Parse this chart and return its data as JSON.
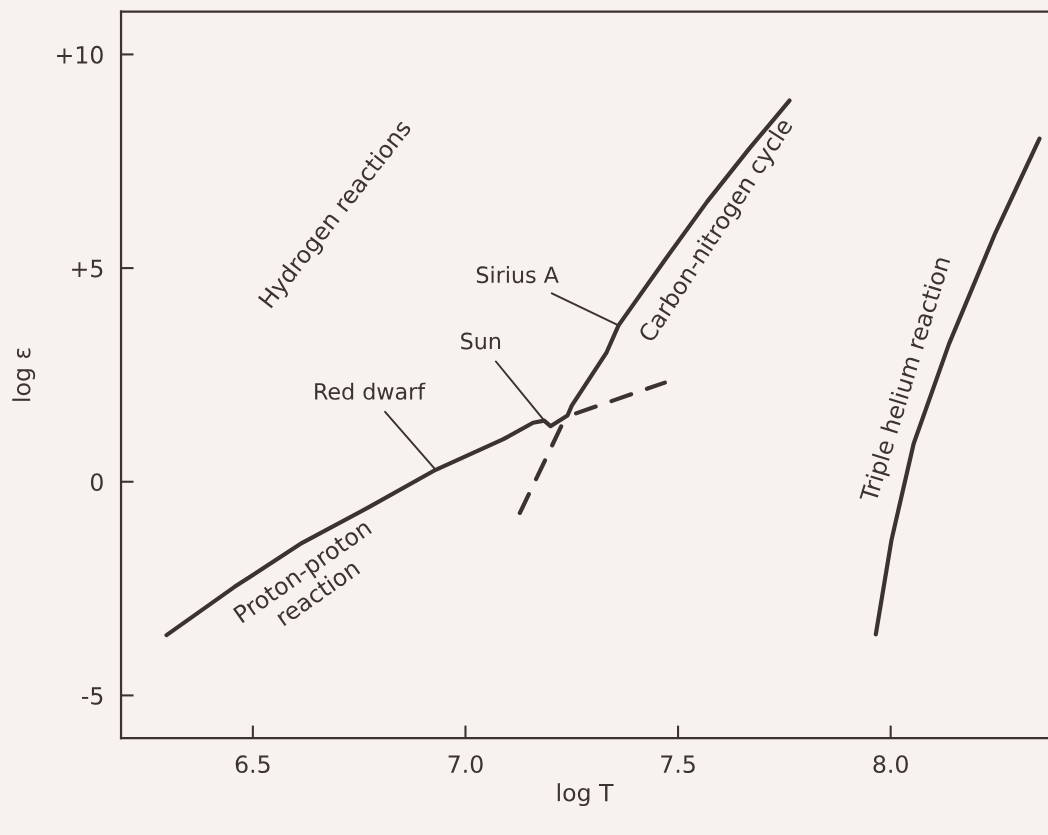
{
  "chart_data": {
    "type": "line",
    "xlabel": "log T",
    "ylabel": "log ε",
    "xlim": [
      6.19,
      8.37
    ],
    "ylim": [
      -6,
      11
    ],
    "xticks": [
      6.5,
      {
        "value": 7,
        "label": "7.0"
      },
      7.5,
      {
        "value": 8,
        "label": "8.0"
      }
    ],
    "yticks": [
      {
        "value": 10,
        "label": "+10"
      },
      {
        "value": 5,
        "label": "+5"
      },
      0,
      {
        "value": -5,
        "label": "-5"
      }
    ],
    "grid": false,
    "legend": false,
    "marker": "none",
    "series": [
      {
        "color": "#3a3331",
        "line_style": "solid",
        "x": [
          6.297,
          6.457,
          6.616,
          6.774,
          6.93,
          7.088,
          7.159,
          7.185,
          7.2,
          7.24,
          7.25,
          7.332,
          7.36,
          7.469,
          7.568,
          7.667,
          7.762
        ],
        "values": [
          -3.59,
          -2.46,
          -1.43,
          -0.59,
          0.28,
          0.99,
          1.38,
          1.43,
          1.3,
          1.55,
          1.78,
          3.03,
          3.66,
          5.19,
          6.55,
          7.79,
          8.92
        ]
      },
      {
        "color": "#3a3331",
        "line_style": "dashed",
        "x": [
          7.128,
          7.235
        ],
        "values": [
          -0.73,
          1.5
        ]
      },
      {
        "color": "#3a3331",
        "line_style": "dashed",
        "x": [
          7.26,
          7.469
        ],
        "values": [
          1.6,
          2.32
        ]
      },
      {
        "color": "#3a3331",
        "line_style": "solid",
        "x": [
          7.965,
          8.002,
          8.054,
          8.137,
          8.246,
          8.35
        ],
        "values": [
          -3.57,
          -1.36,
          0.89,
          3.22,
          5.82,
          8.03
        ]
      }
    ],
    "annotations": [
      "Hydrogen reactions",
      {
        "text": "Red dwarf",
        "x": 6.93,
        "y": 0.28
      },
      {
        "text": "Sun",
        "x": 7.183,
        "y": 1.46
      },
      {
        "text": "Sirius A",
        "x": 7.36,
        "y": 3.66
      },
      "Proton-proton\nreaction",
      "Carbon-nitrogen cycle",
      "Triple helium reaction"
    ]
  }
}
